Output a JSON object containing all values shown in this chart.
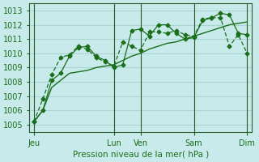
{
  "bg_color": "#c8eaea",
  "grid_color": "#aad4d4",
  "line_color": "#1a6e1a",
  "ylim": [
    1004.5,
    1013.5
  ],
  "yticks": [
    1005,
    1006,
    1007,
    1008,
    1009,
    1010,
    1011,
    1012,
    1013
  ],
  "xlabel": "Pression niveau de la mer( hPa )",
  "xtick_labels": [
    "Jeu",
    "Lun",
    "Ven",
    "Sam",
    "Dim"
  ],
  "xtick_positions": [
    0,
    9,
    12,
    18,
    24
  ],
  "vlines": [
    0,
    9,
    12,
    18,
    24
  ],
  "series1_x": [
    0,
    1,
    2,
    3,
    4,
    5,
    6,
    7,
    8,
    9,
    10,
    11,
    12,
    13,
    14,
    15,
    16,
    17,
    18,
    19,
    20,
    21,
    22,
    23,
    24
  ],
  "series1_y": [
    1005.2,
    1006.0,
    1007.6,
    1008.1,
    1008.6,
    1008.7,
    1008.8,
    1009.0,
    1009.1,
    1009.2,
    1009.5,
    1009.8,
    1010.0,
    1010.3,
    1010.5,
    1010.7,
    1010.8,
    1011.0,
    1011.2,
    1011.4,
    1011.6,
    1011.8,
    1012.0,
    1012.1,
    1012.2
  ],
  "series2_x": [
    0,
    1,
    2,
    3,
    4,
    5,
    6,
    7,
    8,
    9,
    10,
    11,
    12,
    13,
    14,
    15,
    16,
    17,
    18,
    19,
    20,
    21,
    22,
    23,
    24
  ],
  "series2_y": [
    1005.2,
    1006.0,
    1008.1,
    1008.6,
    1009.8,
    1010.4,
    1010.5,
    1009.8,
    1009.5,
    1009.0,
    1009.2,
    1011.6,
    1011.7,
    1011.2,
    1012.0,
    1012.0,
    1011.4,
    1011.0,
    1011.1,
    1012.3,
    1012.5,
    1012.8,
    1012.7,
    1011.4,
    1011.3
  ],
  "series3_x": [
    0,
    1,
    2,
    3,
    4,
    5,
    6,
    7,
    8,
    9,
    10,
    11,
    12,
    13,
    14,
    15,
    16,
    17,
    18,
    19,
    20,
    21,
    22,
    23,
    24
  ],
  "series3_y": [
    1005.2,
    1006.8,
    1008.5,
    1009.7,
    1009.9,
    1010.5,
    1010.3,
    1009.7,
    1009.4,
    1009.1,
    1010.8,
    1010.5,
    1010.2,
    1011.5,
    1011.5,
    1011.4,
    1011.6,
    1011.3,
    1011.2,
    1012.4,
    1012.5,
    1012.5,
    1010.5,
    1011.3,
    1010.0
  ]
}
